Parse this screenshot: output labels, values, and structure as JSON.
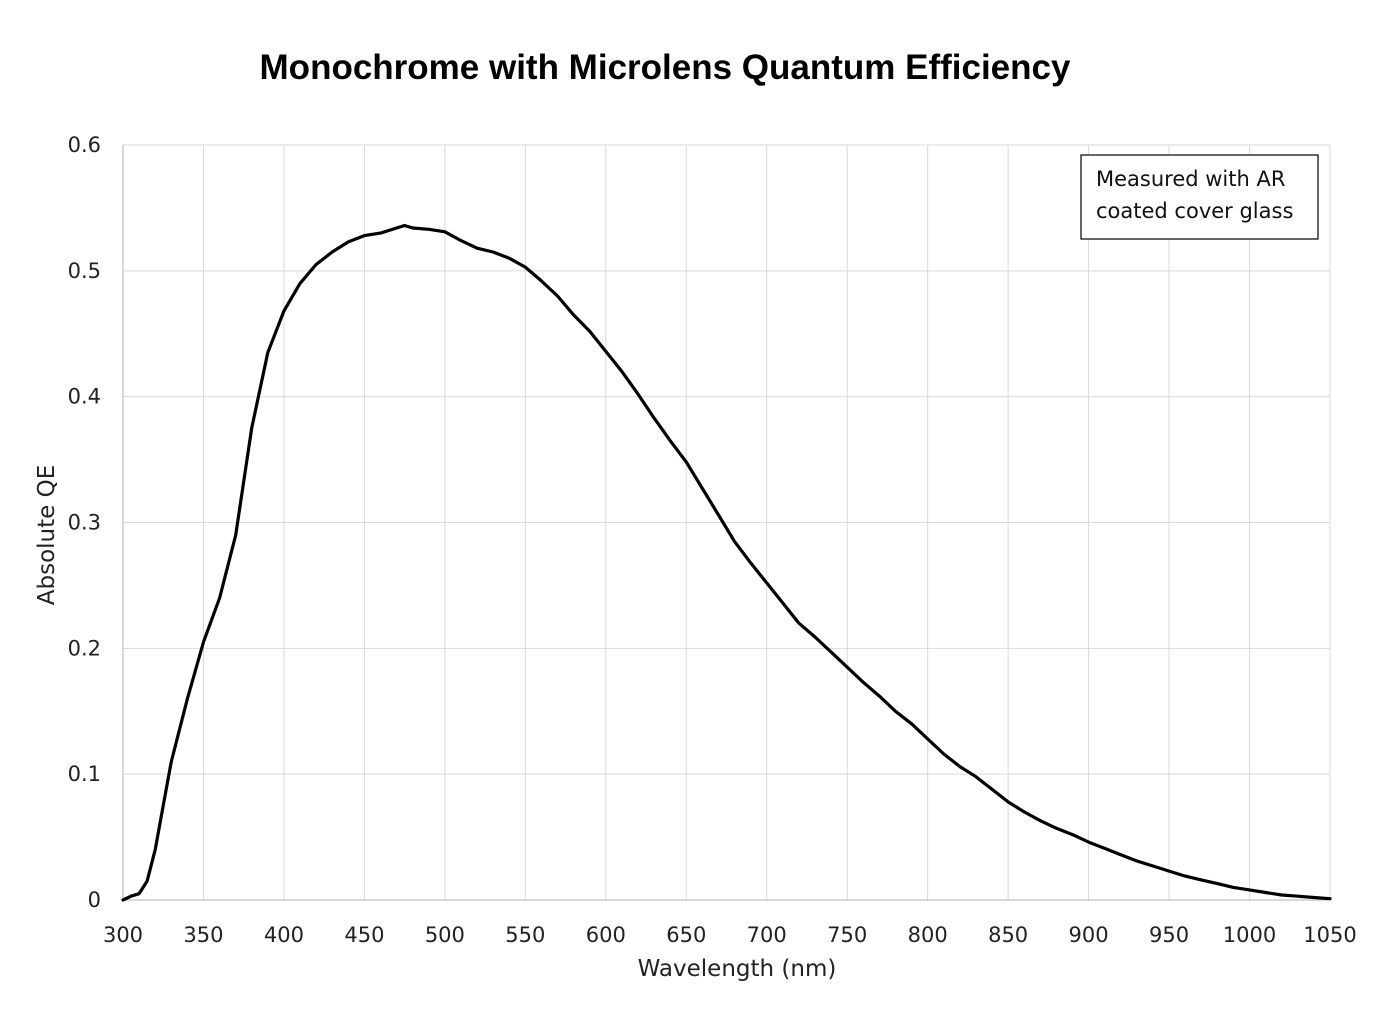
{
  "chart_data": {
    "type": "line",
    "title": "Monochrome with Microlens Quantum Efficiency",
    "xlabel": "Wavelength  (nm)",
    "ylabel": "Absolute QE",
    "xlim": [
      300,
      1050
    ],
    "ylim": [
      0,
      0.6
    ],
    "x_ticks": [
      300,
      350,
      400,
      450,
      500,
      550,
      600,
      650,
      700,
      750,
      800,
      850,
      900,
      950,
      1000,
      1050
    ],
    "y_ticks": [
      0,
      0.1,
      0.2,
      0.3,
      0.4,
      0.5,
      0.6
    ],
    "grid": true,
    "line_color": "#000000",
    "grid_color": "#d9d9d9",
    "annotation": [
      "Measured with AR",
      "coated cover glass"
    ],
    "series": [
      {
        "x": [
          300,
          305,
          310,
          315,
          320,
          325,
          330,
          340,
          350,
          360,
          370,
          380,
          390,
          400,
          410,
          420,
          430,
          440,
          450,
          460,
          470,
          475,
          480,
          490,
          500,
          510,
          520,
          530,
          540,
          550,
          560,
          570,
          580,
          590,
          600,
          610,
          620,
          630,
          640,
          650,
          660,
          670,
          680,
          690,
          700,
          710,
          720,
          730,
          740,
          750,
          760,
          770,
          780,
          790,
          800,
          810,
          820,
          830,
          840,
          850,
          860,
          870,
          880,
          890,
          900,
          910,
          920,
          930,
          940,
          950,
          960,
          970,
          980,
          990,
          1000,
          1010,
          1020,
          1030,
          1040,
          1050
        ],
        "y": [
          0.0,
          0.003,
          0.005,
          0.015,
          0.04,
          0.075,
          0.11,
          0.16,
          0.205,
          0.24,
          0.29,
          0.375,
          0.435,
          0.468,
          0.49,
          0.505,
          0.515,
          0.523,
          0.528,
          0.53,
          0.534,
          0.536,
          0.534,
          0.533,
          0.531,
          0.524,
          0.518,
          0.515,
          0.51,
          0.503,
          0.492,
          0.48,
          0.465,
          0.452,
          0.436,
          0.42,
          0.402,
          0.383,
          0.365,
          0.348,
          0.327,
          0.306,
          0.285,
          0.268,
          0.252,
          0.236,
          0.22,
          0.209,
          0.197,
          0.185,
          0.173,
          0.162,
          0.15,
          0.14,
          0.128,
          0.116,
          0.106,
          0.098,
          0.088,
          0.078,
          0.07,
          0.063,
          0.057,
          0.052,
          0.046,
          0.041,
          0.036,
          0.031,
          0.027,
          0.023,
          0.019,
          0.016,
          0.013,
          0.01,
          0.008,
          0.006,
          0.004,
          0.003,
          0.002,
          0.001
        ]
      }
    ]
  }
}
